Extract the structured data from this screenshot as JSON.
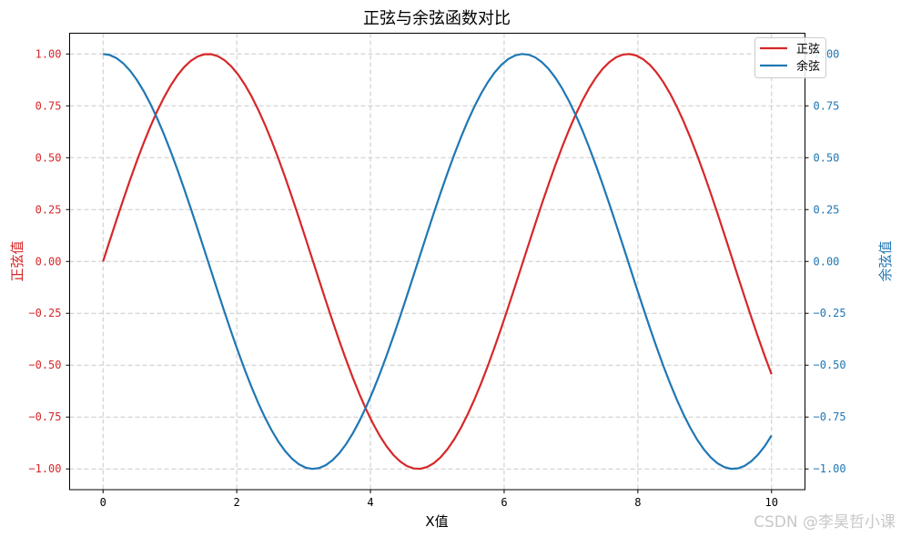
{
  "chart_data": {
    "type": "line",
    "title": "正弦与余弦函数对比",
    "xlabel": "X值",
    "ylabel_left": "正弦值",
    "ylabel_right": "余弦值",
    "xlim": [
      -0.5,
      10.5
    ],
    "ylim_left": [
      -1.1,
      1.1
    ],
    "ylim_right": [
      -1.1,
      1.1
    ],
    "xticks": [
      0,
      2,
      4,
      6,
      8,
      10
    ],
    "yticks": [
      -1.0,
      -0.75,
      -0.5,
      -0.25,
      0.0,
      0.25,
      0.5,
      0.75,
      1.0
    ],
    "grid": true,
    "grid_style": "dashed",
    "legend_placement": "top-right",
    "series": [
      {
        "name": "正弦",
        "function": "sin(x)",
        "x_range": [
          0,
          10
        ],
        "n_points": 100,
        "color": "#d62728",
        "axis": "left"
      },
      {
        "name": "余弦",
        "function": "cos(x)",
        "x_range": [
          0,
          10
        ],
        "n_points": 100,
        "color": "#1f77b4",
        "axis": "right"
      }
    ]
  },
  "watermark": "CSDN @李昊哲小课"
}
